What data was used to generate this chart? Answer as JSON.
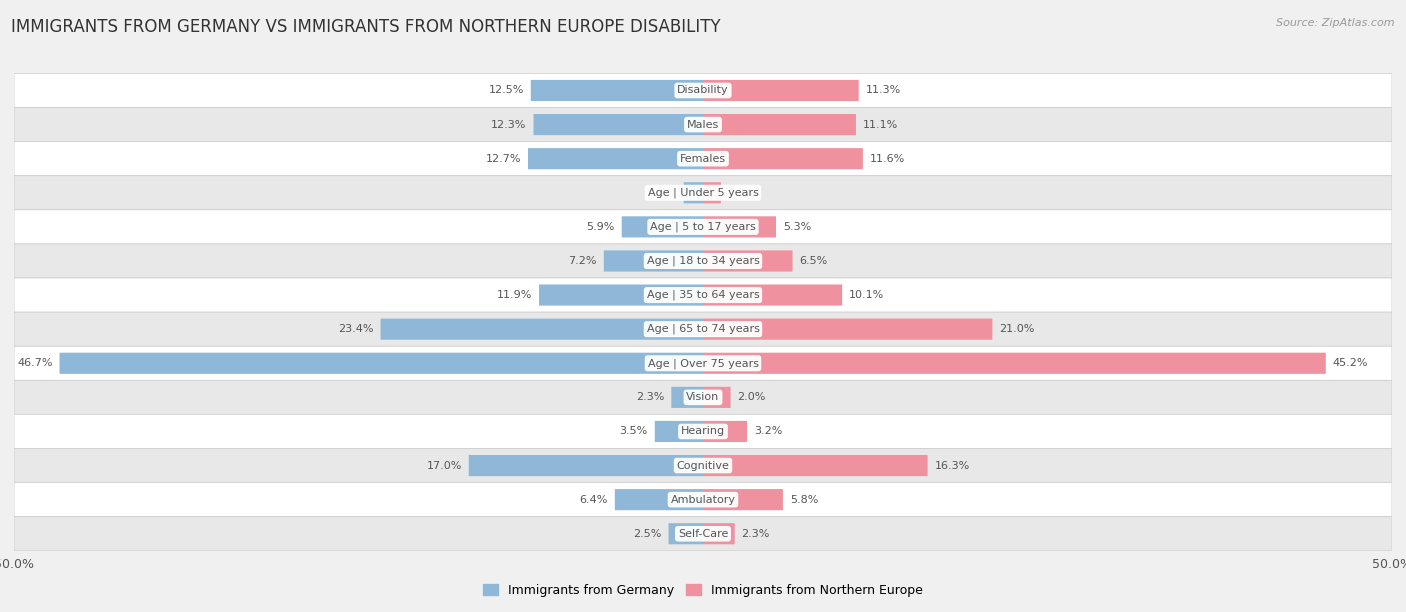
{
  "title": "IMMIGRANTS FROM GERMANY VS IMMIGRANTS FROM NORTHERN EUROPE DISABILITY",
  "source": "Source: ZipAtlas.com",
  "categories": [
    "Disability",
    "Males",
    "Females",
    "Age | Under 5 years",
    "Age | 5 to 17 years",
    "Age | 18 to 34 years",
    "Age | 35 to 64 years",
    "Age | 65 to 74 years",
    "Age | Over 75 years",
    "Vision",
    "Hearing",
    "Cognitive",
    "Ambulatory",
    "Self-Care"
  ],
  "germany_values": [
    12.5,
    12.3,
    12.7,
    1.4,
    5.9,
    7.2,
    11.9,
    23.4,
    46.7,
    2.3,
    3.5,
    17.0,
    6.4,
    2.5
  ],
  "northern_values": [
    11.3,
    11.1,
    11.6,
    1.3,
    5.3,
    6.5,
    10.1,
    21.0,
    45.2,
    2.0,
    3.2,
    16.3,
    5.8,
    2.3
  ],
  "germany_color": "#8fb8d8",
  "northern_color": "#f0919f",
  "axis_limit": 50.0,
  "bar_height": 0.62,
  "background_color": "#f0f0f0",
  "row_white_color": "#ffffff",
  "row_gray_color": "#e8e8e8",
  "legend_germany": "Immigrants from Germany",
  "legend_northern": "Immigrants from Northern Europe",
  "title_fontsize": 12,
  "label_fontsize": 8,
  "category_fontsize": 8,
  "axis_label_fontsize": 9
}
